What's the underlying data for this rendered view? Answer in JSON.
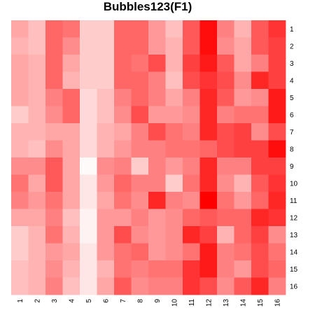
{
  "chart_data": {
    "type": "heatmap",
    "title": "Bubbles123(F1)",
    "xlabel": "",
    "ylabel": "",
    "x_labels": [
      "1",
      "2",
      "3",
      "4",
      "5",
      "6",
      "7",
      "8",
      "9",
      "10",
      "11",
      "12",
      "13",
      "14",
      "15",
      "16"
    ],
    "y_labels": [
      "1",
      "2",
      "3",
      "4",
      "5",
      "6",
      "7",
      "8",
      "9",
      "10",
      "11",
      "12",
      "13",
      "14",
      "15",
      "16"
    ],
    "value_range": [
      0,
      1
    ],
    "colors": {
      "low": "#FFFFFF",
      "high": "#FF0000"
    },
    "legend": "none",
    "grid": false,
    "values": [
      [
        0.35,
        0.25,
        0.6,
        0.55,
        0.2,
        0.2,
        0.6,
        0.6,
        0.4,
        0.25,
        0.65,
        0.95,
        0.5,
        0.3,
        0.65,
        0.8
      ],
      [
        0.3,
        0.25,
        0.6,
        0.45,
        0.2,
        0.2,
        0.6,
        0.6,
        0.4,
        0.3,
        0.65,
        0.95,
        0.45,
        0.35,
        0.65,
        0.75
      ],
      [
        0.35,
        0.3,
        0.6,
        0.35,
        0.2,
        0.2,
        0.6,
        0.55,
        0.7,
        0.3,
        0.75,
        0.9,
        0.65,
        0.35,
        0.5,
        0.75
      ],
      [
        0.35,
        0.3,
        0.6,
        0.3,
        0.2,
        0.2,
        0.6,
        0.6,
        0.5,
        0.25,
        0.7,
        0.8,
        0.7,
        0.45,
        0.85,
        0.75
      ],
      [
        0.35,
        0.3,
        0.5,
        0.6,
        0.15,
        0.25,
        0.5,
        0.6,
        0.5,
        0.35,
        0.5,
        0.85,
        0.65,
        0.4,
        0.45,
        0.9
      ],
      [
        0.2,
        0.3,
        0.45,
        0.6,
        0.15,
        0.25,
        0.45,
        0.7,
        0.4,
        0.4,
        0.45,
        0.85,
        0.5,
        0.55,
        0.55,
        0.9
      ],
      [
        0.3,
        0.3,
        0.35,
        0.35,
        0.15,
        0.3,
        0.35,
        0.5,
        0.7,
        0.55,
        0.5,
        0.85,
        0.7,
        0.75,
        0.45,
        0.7
      ],
      [
        0.3,
        0.25,
        0.45,
        0.35,
        0.15,
        0.3,
        0.4,
        0.5,
        0.5,
        0.55,
        0.55,
        0.6,
        0.7,
        0.75,
        0.75,
        0.95
      ],
      [
        0.45,
        0.45,
        0.65,
        0.35,
        0.02,
        0.45,
        0.5,
        0.2,
        0.5,
        0.4,
        0.5,
        0.85,
        0.5,
        0.5,
        0.75,
        0.75
      ],
      [
        0.55,
        0.35,
        0.65,
        0.35,
        0.1,
        0.4,
        0.6,
        0.5,
        0.5,
        0.2,
        0.55,
        0.85,
        0.45,
        0.3,
        0.65,
        0.8
      ],
      [
        0.5,
        0.4,
        0.55,
        0.35,
        0.1,
        0.35,
        0.55,
        0.45,
        0.85,
        0.5,
        0.45,
        1.0,
        0.55,
        0.4,
        0.6,
        0.85
      ],
      [
        0.35,
        0.35,
        0.5,
        0.25,
        0.05,
        0.4,
        0.4,
        0.5,
        0.4,
        0.45,
        0.6,
        0.65,
        0.6,
        0.6,
        0.85,
        0.8
      ],
      [
        0.2,
        0.3,
        0.55,
        0.3,
        0.05,
        0.4,
        0.7,
        0.45,
        0.4,
        0.45,
        0.85,
        0.75,
        0.3,
        0.6,
        0.75,
        0.45
      ],
      [
        0.2,
        0.3,
        0.4,
        0.35,
        0.1,
        0.4,
        0.55,
        0.6,
        0.4,
        0.45,
        0.55,
        0.9,
        0.5,
        0.55,
        0.7,
        0.55
      ],
      [
        0.25,
        0.3,
        0.45,
        0.3,
        0.1,
        0.3,
        0.55,
        0.5,
        0.55,
        0.55,
        0.8,
        0.9,
        0.5,
        0.4,
        0.7,
        0.6
      ],
      [
        0.25,
        0.3,
        0.5,
        0.25,
        0.1,
        0.35,
        0.65,
        0.45,
        0.5,
        0.5,
        0.8,
        0.7,
        0.45,
        0.65,
        0.85,
        0.5
      ]
    ]
  }
}
